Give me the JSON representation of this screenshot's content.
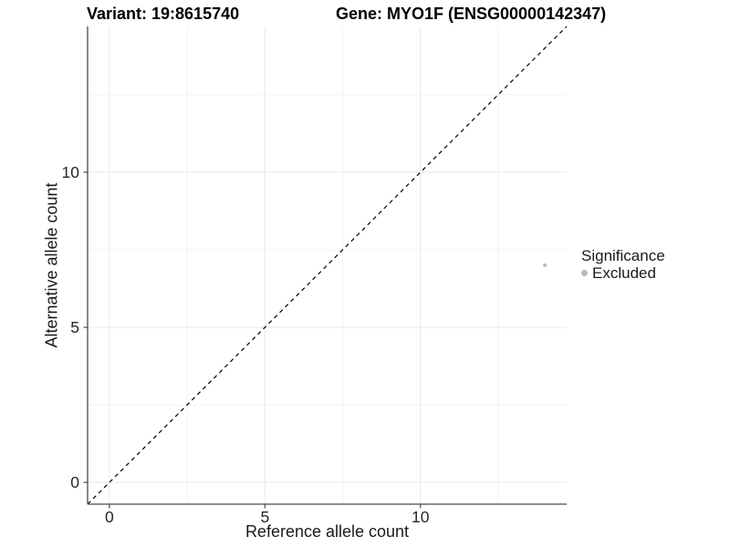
{
  "header": {
    "left_title": "Variant: 19:8615740",
    "right_title": "Gene: MYO1F (ENSG00000142347)"
  },
  "chart_data": {
    "type": "scatter",
    "xlabel": "Reference allele count",
    "ylabel": "Alternative allele count",
    "xlim": [
      -0.7,
      14.7
    ],
    "ylim": [
      -0.7,
      14.7
    ],
    "x_ticks": [
      0,
      5,
      10
    ],
    "y_ticks": [
      0,
      5,
      10
    ],
    "x_minor_gridlines": [
      2.5,
      7.5,
      12.5
    ],
    "y_minor_gridlines": [
      2.5,
      7.5,
      12.5
    ],
    "grid": true,
    "points": [
      {
        "x": 14,
        "y": 7,
        "series": "Excluded"
      }
    ],
    "identity_line": {
      "slope": 1,
      "intercept": 0,
      "style": "dashed",
      "color": "#000000"
    },
    "legend": {
      "position": "right",
      "title": "Significance",
      "entries": [
        {
          "label": "Excluded",
          "color": "#b9b9b9"
        }
      ]
    },
    "colors": {
      "point": "#bdbdbd",
      "axis_line": "#4a4a4a",
      "tick_label": "#262626",
      "grid_major": "#e9e9e9",
      "grid_minor": "#f3f3f3",
      "background": "#ffffff"
    }
  }
}
